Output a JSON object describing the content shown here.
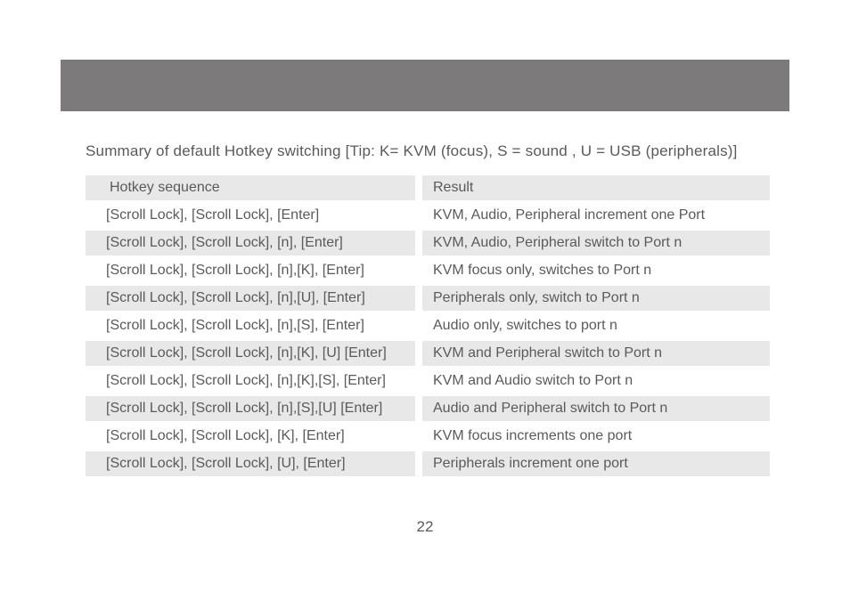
{
  "colors": {
    "header_bar": "#7c7a7b",
    "shaded_row": "#e8e8e8",
    "text": "#5a5a5a",
    "background": "#ffffff"
  },
  "summary": "Summary of default Hotkey switching  [Tip:  K= KVM (focus),  S = sound ,  U = USB (peripherals)]",
  "table": {
    "header": {
      "sequence": "Hotkey sequence",
      "result": "Result"
    },
    "rows": [
      {
        "sequence": "[Scroll Lock], [Scroll Lock], [Enter]",
        "result": "KVM, Audio, Peripheral increment one Port",
        "shaded": false
      },
      {
        "sequence": "[Scroll Lock], [Scroll Lock], [n], [Enter]",
        "result": "KVM, Audio, Peripheral switch to Port n",
        "shaded": true
      },
      {
        "sequence": "[Scroll Lock], [Scroll Lock], [n],[K], [Enter]",
        "result": "KVM focus only,  switches to Port n",
        "shaded": false
      },
      {
        "sequence": "[Scroll Lock], [Scroll Lock], [n],[U], [Enter]",
        "result": "Peripherals only,  switch to Port n",
        "shaded": true
      },
      {
        "sequence": "[Scroll Lock], [Scroll Lock], [n],[S], [Enter]",
        "result": "Audio only,  switches to port n",
        "shaded": false
      },
      {
        "sequence": "[Scroll Lock], [Scroll Lock], [n],[K], [U] [Enter]",
        "result": "KVM and Peripheral switch to Port n",
        "shaded": true
      },
      {
        "sequence": "[Scroll Lock], [Scroll Lock], [n],[K],[S], [Enter]",
        "result": "KVM and Audio switch to Port n",
        "shaded": false
      },
      {
        "sequence": "[Scroll Lock], [Scroll Lock], [n],[S],[U] [Enter]",
        "result": "Audio and Peripheral switch to Port n",
        "shaded": true
      },
      {
        "sequence": "[Scroll Lock], [Scroll Lock], [K], [Enter]",
        "result": "KVM focus increments one port",
        "shaded": false
      },
      {
        "sequence": "[Scroll Lock], [Scroll Lock], [U], [Enter]",
        "result": "Peripherals increment one port",
        "shaded": true
      }
    ]
  },
  "page_number": "22"
}
